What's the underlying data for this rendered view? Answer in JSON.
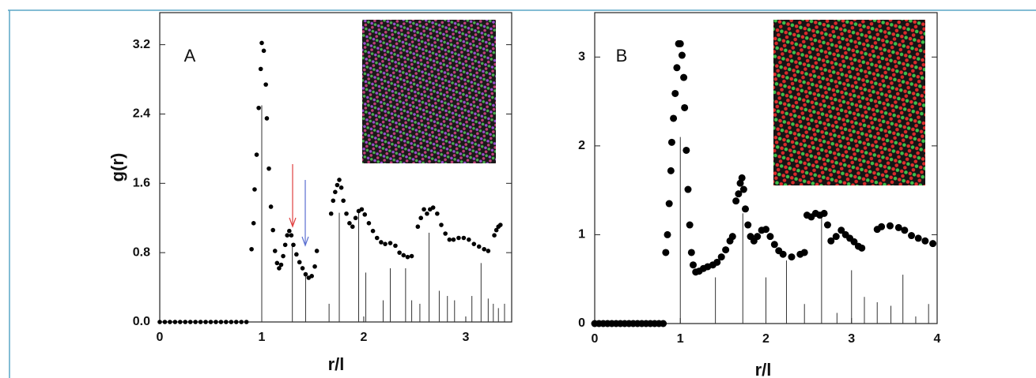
{
  "chart_data": [
    {
      "type": "scatter",
      "annotation": "A",
      "ylabel": "g(r)",
      "xlabel": "r/l",
      "color": "#000000",
      "xlim": [
        0,
        3.45
      ],
      "ylim": [
        0,
        3.57
      ],
      "xticks": [
        0,
        1,
        2,
        3
      ],
      "yticks": [
        {
          "value": 0,
          "label": "0.0"
        },
        0.8,
        1.6,
        2.4,
        3.2
      ],
      "x": [
        0,
        0.05,
        0.1,
        0.15,
        0.2,
        0.25,
        0.3,
        0.35,
        0.4,
        0.45,
        0.5,
        0.55,
        0.6,
        0.65,
        0.7,
        0.75,
        0.8,
        0.85,
        0.9,
        0.92,
        0.93,
        0.95,
        0.97,
        0.99,
        1.0,
        1.02,
        1.04,
        1.05,
        1.07,
        1.09,
        1.11,
        1.13,
        1.15,
        1.17,
        1.19,
        1.21,
        1.23,
        1.25,
        1.27,
        1.29,
        1.31,
        1.34,
        1.37,
        1.4,
        1.43,
        1.46,
        1.49,
        1.52,
        1.54,
        1.68,
        1.7,
        1.72,
        1.74,
        1.76,
        1.78,
        1.8,
        1.83,
        1.86,
        1.89,
        1.92,
        1.95,
        1.98,
        2.01,
        2.05,
        2.09,
        2.13,
        2.17,
        2.21,
        2.26,
        2.31,
        2.35,
        2.39,
        2.43,
        2.47,
        2.53,
        2.56,
        2.59,
        2.62,
        2.65,
        2.68,
        2.72,
        2.76,
        2.8,
        2.84,
        2.88,
        2.93,
        2.98,
        3.03,
        3.08,
        3.13,
        3.18,
        3.22,
        3.28,
        3.3,
        3.32,
        3.34
      ],
      "values": [
        0,
        0,
        0,
        0,
        0,
        0,
        0,
        0,
        0,
        0,
        0,
        0,
        0,
        0,
        0,
        0,
        0,
        0,
        0.84,
        1.14,
        1.53,
        1.93,
        2.47,
        2.92,
        3.22,
        3.13,
        2.74,
        2.35,
        1.77,
        1.33,
        1.06,
        0.82,
        0.68,
        0.62,
        0.66,
        0.76,
        0.89,
        1.0,
        1.05,
        1.0,
        0.89,
        0.78,
        0.69,
        0.62,
        0.55,
        0.51,
        0.53,
        0.64,
        0.82,
        1.25,
        1.4,
        1.5,
        1.58,
        1.64,
        1.55,
        1.4,
        1.25,
        1.14,
        1.1,
        1.2,
        1.28,
        1.3,
        1.24,
        1.14,
        1.05,
        0.97,
        0.92,
        0.9,
        0.91,
        0.88,
        0.8,
        0.77,
        0.75,
        0.76,
        1.1,
        1.2,
        1.3,
        1.25,
        1.3,
        1.32,
        1.25,
        1.12,
        1.02,
        0.95,
        0.95,
        0.97,
        0.97,
        0.95,
        0.9,
        0.87,
        0.84,
        0.82,
        1.0,
        1.06,
        1.1,
        1.12
      ],
      "stems_x": [
        1.0,
        1.3,
        1.43,
        1.66,
        1.76,
        1.95,
        2.02,
        2.19,
        2.26,
        2.41,
        2.47,
        2.55,
        2.64,
        2.74,
        2.82,
        2.89,
        3.06,
        3.15,
        3.22,
        3.27,
        3.32,
        3.38
      ],
      "stems_values": [
        2.5,
        0.9,
        0.55,
        0.21,
        1.26,
        1.26,
        0.57,
        0.25,
        0.62,
        0.62,
        0.25,
        0.21,
        1.03,
        0.36,
        0.3,
        0.25,
        0.3,
        0.68,
        0.27,
        0.21,
        0.16,
        0.21
      ]
    },
    {
      "type": "scatter",
      "annotation": "B",
      "xlabel": "r/l",
      "color": "#000000",
      "xlim": [
        0,
        4
      ],
      "ylim": [
        0,
        3.5
      ],
      "xticks": [
        0,
        1,
        2,
        3,
        4
      ],
      "yticks": [
        0,
        1,
        2,
        3
      ],
      "x": [
        0,
        0.05,
        0.1,
        0.15,
        0.2,
        0.25,
        0.3,
        0.35,
        0.4,
        0.45,
        0.5,
        0.55,
        0.6,
        0.65,
        0.7,
        0.75,
        0.8,
        0.83,
        0.85,
        0.87,
        0.89,
        0.9,
        0.92,
        0.94,
        0.96,
        0.98,
        1.0,
        1.02,
        1.04,
        1.05,
        1.07,
        1.09,
        1.11,
        1.13,
        1.15,
        1.18,
        1.22,
        1.27,
        1.32,
        1.38,
        1.43,
        1.48,
        1.53,
        1.58,
        1.61,
        1.65,
        1.68,
        1.7,
        1.72,
        1.74,
        1.76,
        1.79,
        1.82,
        1.86,
        1.9,
        1.95,
        2.0,
        2.05,
        2.1,
        2.15,
        2.2,
        2.3,
        2.4,
        2.45,
        2.48,
        2.53,
        2.58,
        2.63,
        2.68,
        2.72,
        2.76,
        2.82,
        2.88,
        2.93,
        2.98,
        3.03,
        3.08,
        3.12,
        3.3,
        3.35,
        3.45,
        3.55,
        3.62,
        3.7,
        3.78,
        3.86,
        3.95
      ],
      "values": [
        0,
        0,
        0,
        0,
        0,
        0,
        0,
        0,
        0,
        0,
        0,
        0,
        0,
        0,
        0,
        0,
        0,
        0.8,
        1.0,
        1.35,
        1.72,
        2.04,
        2.31,
        2.59,
        2.88,
        3.15,
        3.15,
        3.02,
        2.77,
        2.43,
        1.95,
        1.51,
        1.11,
        0.8,
        0.66,
        0.58,
        0.59,
        0.62,
        0.64,
        0.66,
        0.69,
        0.75,
        0.83,
        0.93,
        0.98,
        1.38,
        1.46,
        1.58,
        1.64,
        1.51,
        1.29,
        1.11,
        0.98,
        0.93,
        0.98,
        1.05,
        1.06,
        0.98,
        0.89,
        0.82,
        0.78,
        0.75,
        0.78,
        0.8,
        1.22,
        1.2,
        1.24,
        1.22,
        1.24,
        1.11,
        0.93,
        0.98,
        1.05,
        1.0,
        0.96,
        0.92,
        0.87,
        0.85,
        1.06,
        1.09,
        1.1,
        1.08,
        1.05,
        0.99,
        0.96,
        0.93,
        0.9
      ],
      "stems_x": [
        1.0,
        1.41,
        1.73,
        2.0,
        2.24,
        2.45,
        2.65,
        2.83,
        3.0,
        3.15,
        3.3,
        3.46,
        3.6,
        3.75,
        3.9
      ],
      "stems_values": [
        2.1,
        0.52,
        1.24,
        0.52,
        0.71,
        0.22,
        1.25,
        0.12,
        0.6,
        0.3,
        0.24,
        0.2,
        0.55,
        0.08,
        0.22
      ]
    }
  ]
}
